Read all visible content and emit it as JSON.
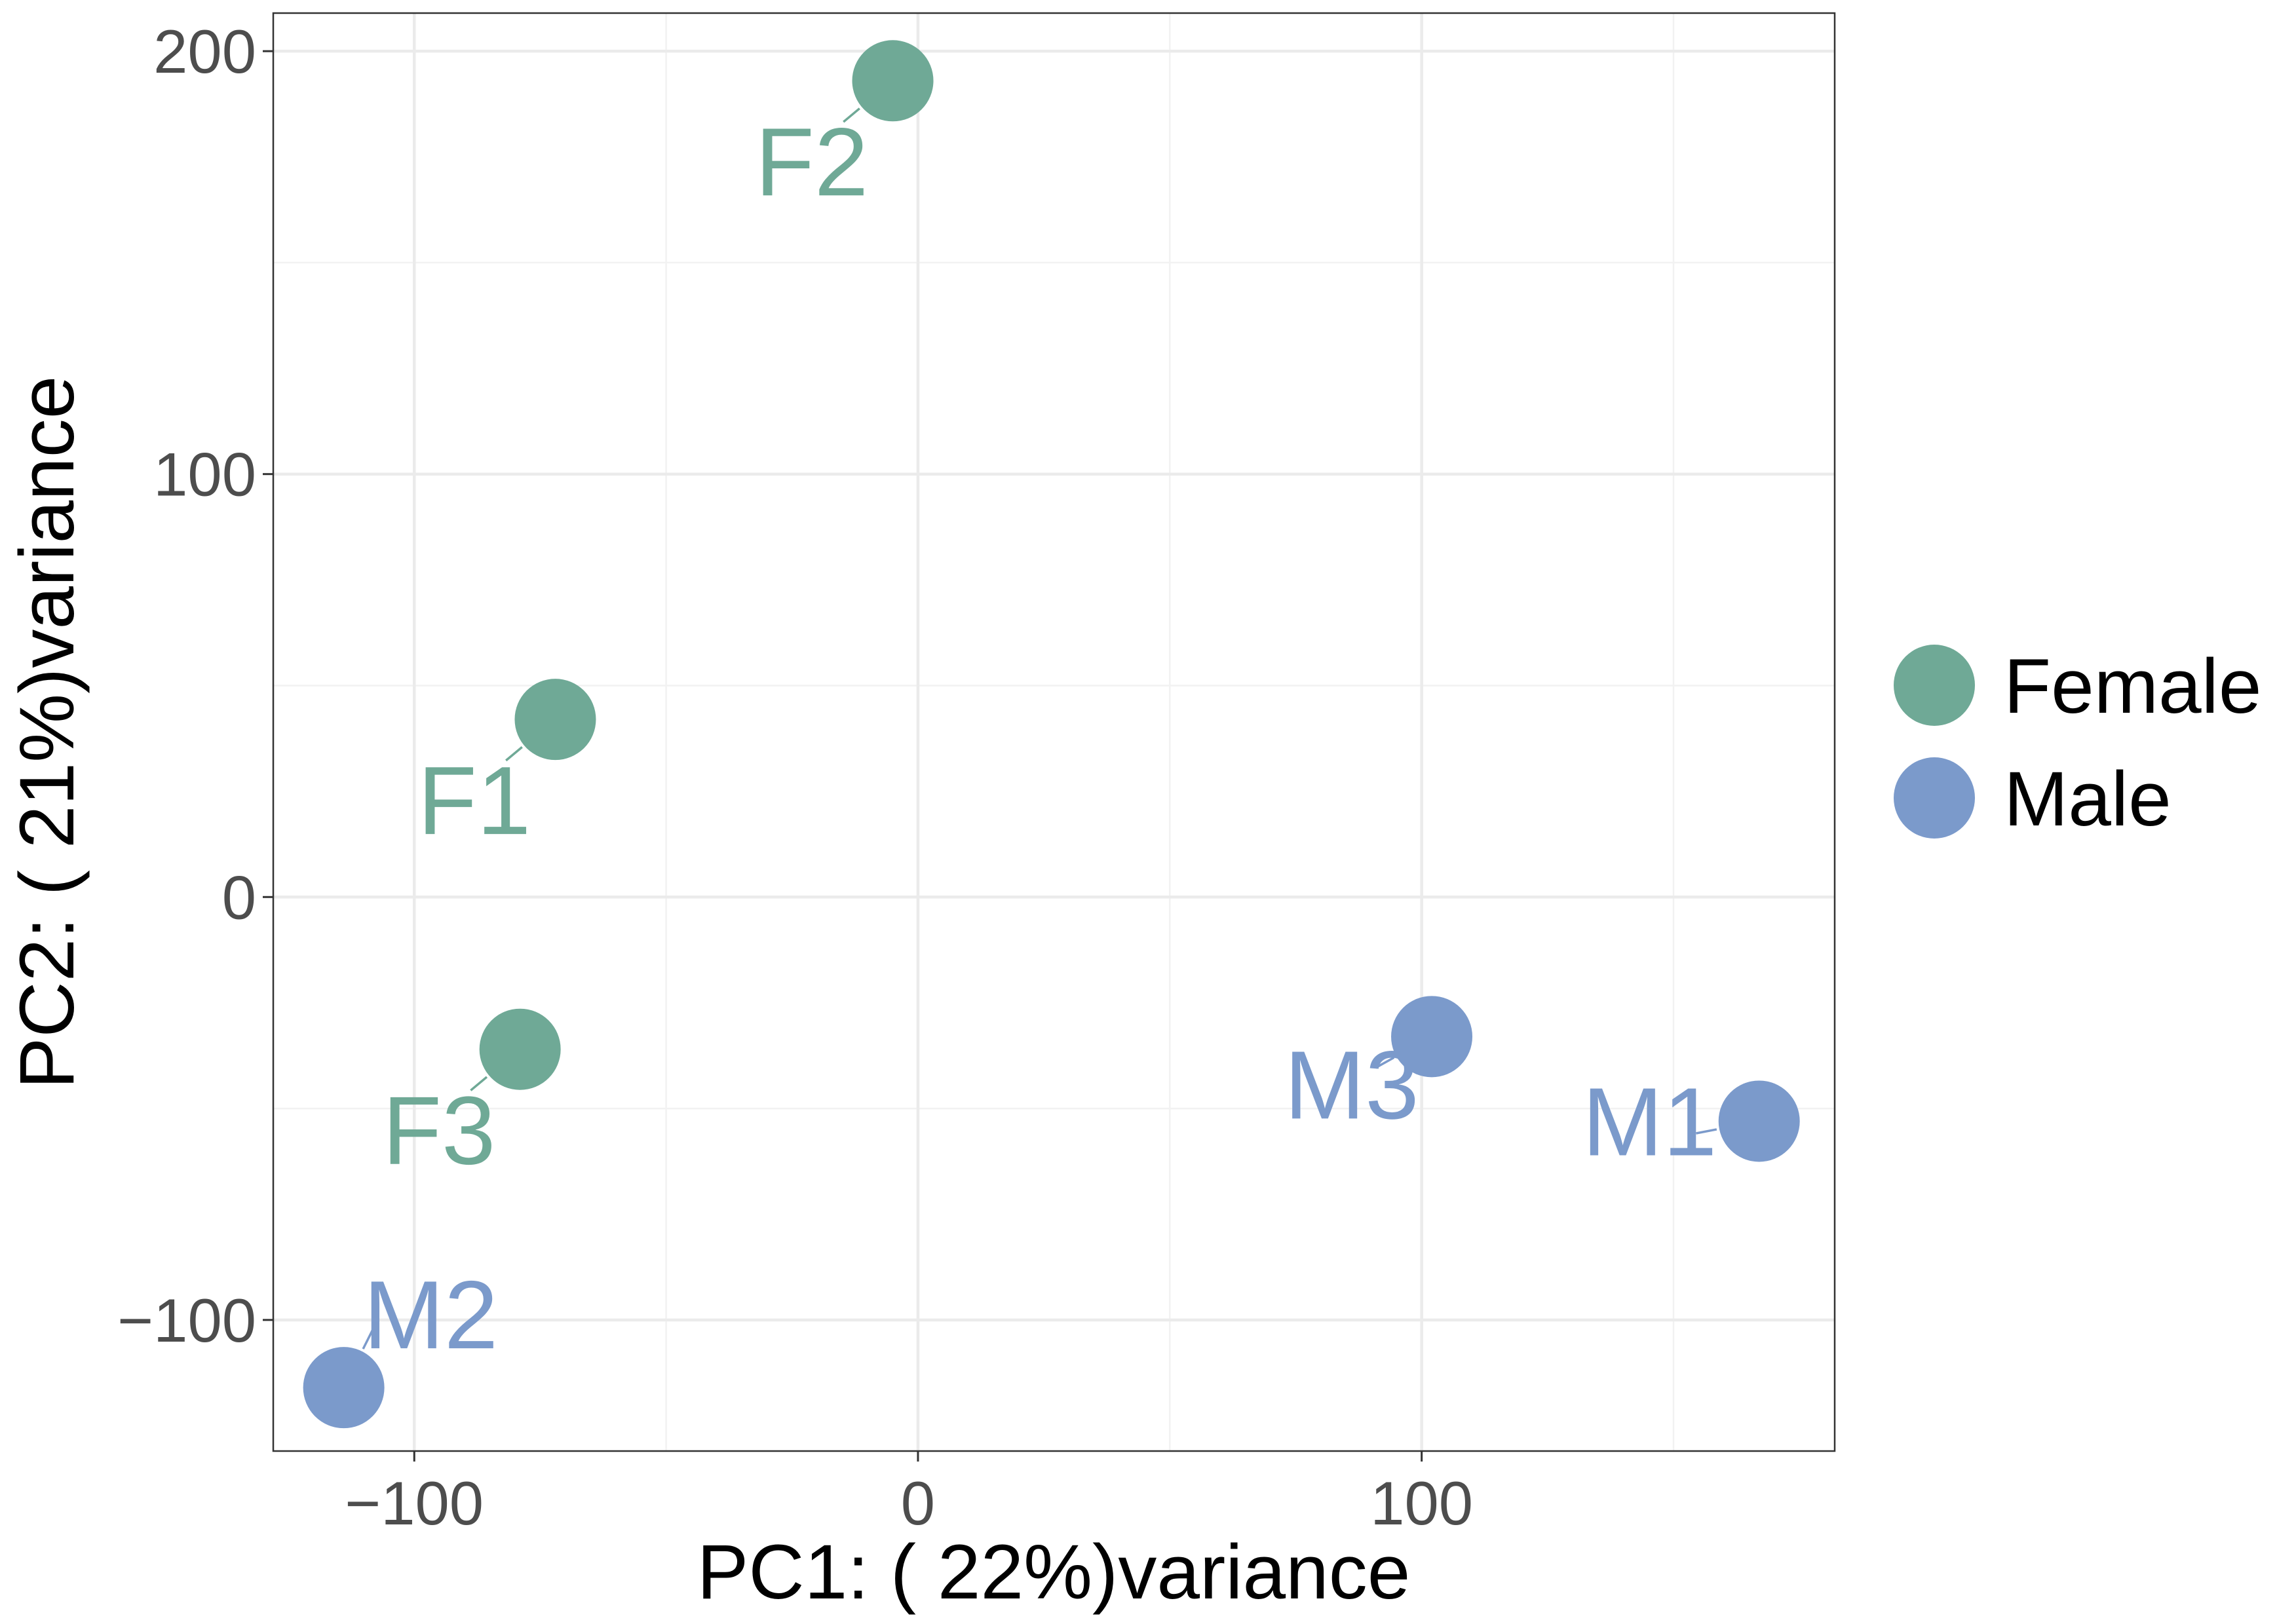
{
  "chart_data": {
    "type": "scatter",
    "xlabel": "PC1: ( 22%)variance",
    "ylabel": "PC2: ( 21%)variance",
    "xlim": [
      -128,
      182
    ],
    "ylim": [
      -131,
      209
    ],
    "x_ticks": [
      -100,
      0,
      100
    ],
    "y_ticks": [
      -100,
      0,
      100,
      200
    ],
    "x_tick_labels": [
      "−100",
      "0",
      "100"
    ],
    "y_tick_labels": [
      "−100",
      "0",
      "100",
      "200"
    ],
    "grid": true,
    "legend_position": "right",
    "series": [
      {
        "name": "Female",
        "color": "#6fa996",
        "points": [
          {
            "label": "F1",
            "x": -72,
            "y": 42
          },
          {
            "label": "F2",
            "x": -5,
            "y": 193
          },
          {
            "label": "F3",
            "x": -79,
            "y": -36
          }
        ]
      },
      {
        "name": "Male",
        "color": "#7b9acb",
        "points": [
          {
            "label": "M1",
            "x": 167,
            "y": -53
          },
          {
            "label": "M2",
            "x": -114,
            "y": -116
          },
          {
            "label": "M3",
            "x": 102,
            "y": -33
          }
        ]
      }
    ]
  }
}
